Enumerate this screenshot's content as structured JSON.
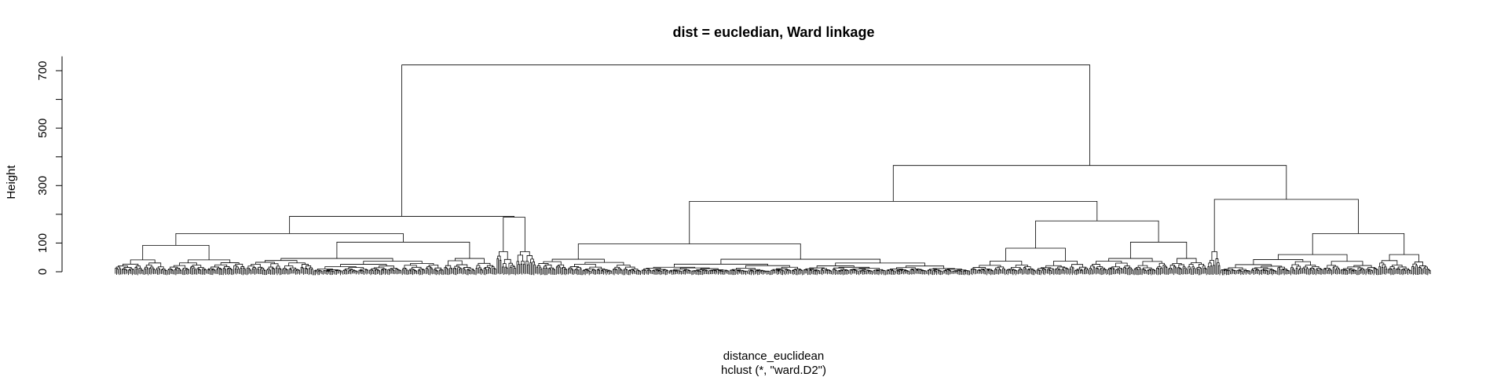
{
  "chart_data": {
    "type": "dendrogram",
    "title": "dist = eucledian, Ward linkage",
    "xlabel": "distance_euclidean",
    "sub": "hclust (*, \"ward.D2\")",
    "ylabel": "Height",
    "ylim": [
      0,
      750
    ],
    "y_ticks": [
      0,
      100,
      300,
      500,
      700
    ],
    "y_minor_ticks": [
      0,
      100,
      200,
      300,
      400,
      500,
      600,
      700
    ],
    "leaf_count": 1000,
    "merges": [
      {
        "id": "root",
        "height": 720,
        "children": [
          "A",
          "B"
        ]
      },
      {
        "id": "A",
        "height": 193,
        "children": [
          "A1",
          "A2"
        ]
      },
      {
        "id": "A1",
        "height": 133,
        "children": [
          "A1a",
          "A1b"
        ]
      },
      {
        "id": "A1a",
        "height": 92,
        "children": [
          "A1a1",
          "A1a2"
        ]
      },
      {
        "id": "A1b",
        "height": 103,
        "children": [
          "A1b1",
          "A1b2"
        ]
      },
      {
        "id": "A2",
        "height": 190,
        "children": [
          "A2a",
          "A2b"
        ]
      },
      {
        "id": "B",
        "height": 370,
        "children": [
          "B1",
          "B2"
        ]
      },
      {
        "id": "B1",
        "height": 245,
        "children": [
          "B1a",
          "B1b"
        ]
      },
      {
        "id": "B1a",
        "height": 97,
        "children": [
          "B1a1",
          "B1a2"
        ]
      },
      {
        "id": "B1b",
        "height": 177,
        "children": [
          "B1b1",
          "B1b2"
        ]
      },
      {
        "id": "B1b1",
        "height": 82,
        "children": [
          "B1b1a",
          "B1b1b"
        ]
      },
      {
        "id": "B1b2",
        "height": 103,
        "children": [
          "B1b2a",
          "B1b2b"
        ]
      },
      {
        "id": "B2",
        "height": 252,
        "children": [
          "B2a",
          "B2b"
        ]
      },
      {
        "id": "B2b",
        "height": 133,
        "children": [
          "B2b1",
          "B2b2"
        ]
      }
    ]
  }
}
